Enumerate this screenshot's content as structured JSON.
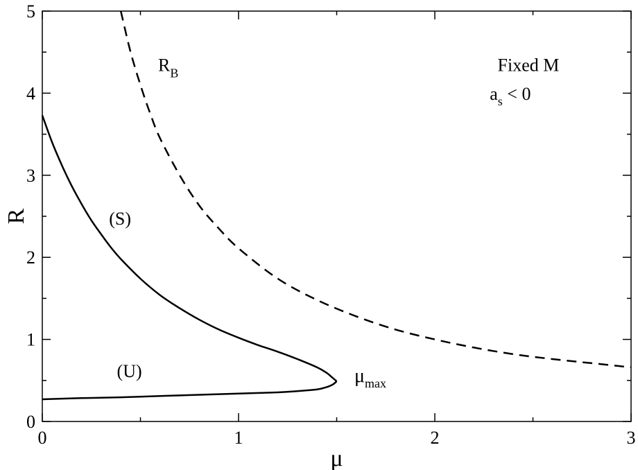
{
  "chart_data": {
    "type": "line",
    "title": "",
    "xlabel": "μ",
    "ylabel": "R",
    "xlim": [
      0,
      3
    ],
    "ylim": [
      0,
      5
    ],
    "x_ticks": [
      0,
      1,
      2,
      3
    ],
    "y_ticks": [
      0,
      1,
      2,
      3,
      4,
      5
    ],
    "x_tick_labels": [
      "0",
      "1",
      "2",
      "3"
    ],
    "y_tick_labels": [
      "0",
      "1",
      "2",
      "3",
      "4",
      "5"
    ],
    "x_minor_step": 0.5,
    "y_minor_step": 0.5,
    "grid": false,
    "series": [
      {
        "key": "S",
        "style": "solid",
        "color": "#000000",
        "points": [
          [
            0.0,
            3.73
          ],
          [
            0.05,
            3.4
          ],
          [
            0.1,
            3.12
          ],
          [
            0.15,
            2.87
          ],
          [
            0.2,
            2.65
          ],
          [
            0.25,
            2.45
          ],
          [
            0.3,
            2.28
          ],
          [
            0.35,
            2.12
          ],
          [
            0.4,
            1.98
          ],
          [
            0.5,
            1.74
          ],
          [
            0.6,
            1.54
          ],
          [
            0.7,
            1.38
          ],
          [
            0.8,
            1.24
          ],
          [
            0.9,
            1.12
          ],
          [
            1.0,
            1.02
          ],
          [
            1.1,
            0.93
          ],
          [
            1.2,
            0.85
          ],
          [
            1.3,
            0.76
          ],
          [
            1.4,
            0.66
          ],
          [
            1.45,
            0.59
          ],
          [
            1.48,
            0.53
          ],
          [
            1.5,
            0.49
          ]
        ]
      },
      {
        "key": "U",
        "style": "solid",
        "color": "#000000",
        "points": [
          [
            1.5,
            0.49
          ],
          [
            1.48,
            0.45
          ],
          [
            1.45,
            0.42
          ],
          [
            1.4,
            0.39
          ],
          [
            1.3,
            0.37
          ],
          [
            1.2,
            0.355
          ],
          [
            1.0,
            0.34
          ],
          [
            0.8,
            0.325
          ],
          [
            0.6,
            0.31
          ],
          [
            0.4,
            0.295
          ],
          [
            0.2,
            0.285
          ],
          [
            0.0,
            0.27
          ]
        ]
      },
      {
        "key": "RB",
        "style": "dashed",
        "color": "#000000",
        "points": [
          [
            0.4,
            5.0
          ],
          [
            0.45,
            4.5
          ],
          [
            0.5,
            4.1
          ],
          [
            0.55,
            3.75
          ],
          [
            0.6,
            3.45
          ],
          [
            0.7,
            3.0
          ],
          [
            0.8,
            2.63
          ],
          [
            0.9,
            2.35
          ],
          [
            1.0,
            2.11
          ],
          [
            1.2,
            1.74
          ],
          [
            1.4,
            1.48
          ],
          [
            1.6,
            1.28
          ],
          [
            1.8,
            1.12
          ],
          [
            2.0,
            1.0
          ],
          [
            2.2,
            0.9
          ],
          [
            2.4,
            0.82
          ],
          [
            2.6,
            0.76
          ],
          [
            2.8,
            0.71
          ],
          [
            3.0,
            0.66
          ]
        ]
      }
    ],
    "annotations": [
      {
        "key": "rb",
        "base": "R",
        "sub": "B",
        "x": 0.59,
        "y": 4.27
      },
      {
        "key": "s",
        "text": "(S)",
        "x": 0.34,
        "y": 2.4
      },
      {
        "key": "u",
        "text": "(U)",
        "x": 0.38,
        "y": 0.54
      },
      {
        "key": "mumax",
        "base": "μ",
        "sub": "max",
        "x": 1.59,
        "y": 0.48
      },
      {
        "key": "fixedm",
        "text": "Fixed M",
        "x": 2.32,
        "y": 4.27
      },
      {
        "key": "as",
        "base": "a",
        "sub": "s",
        "tail": " < 0",
        "x": 2.28,
        "y": 3.92
      }
    ]
  }
}
